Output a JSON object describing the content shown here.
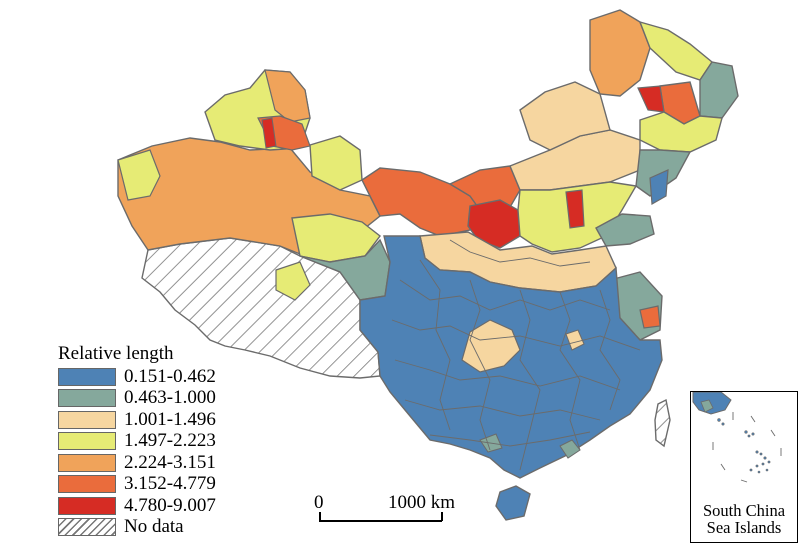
{
  "map": {
    "colors": {
      "class1": "#4e82b5",
      "class2": "#85a89c",
      "class3": "#f6d6a0",
      "class4": "#e6eb75",
      "class5": "#f0a35a",
      "class6": "#ea6c3c",
      "class7": "#d62c24",
      "boundary": "#6b6b6b",
      "hatch": "#777777"
    }
  },
  "legend": {
    "title": "Relative length",
    "items": [
      {
        "label": "0.151-0.462",
        "color": "#4e82b5"
      },
      {
        "label": "0.463-1.000",
        "color": "#85a89c"
      },
      {
        "label": "1.001-1.496",
        "color": "#f6d6a0"
      },
      {
        "label": "1.497-2.223",
        "color": "#e6eb75"
      },
      {
        "label": "2.224-3.151",
        "color": "#f0a35a"
      },
      {
        "label": "3.152-4.779",
        "color": "#ea6c3c"
      },
      {
        "label": "4.780-9.007",
        "color": "#d62c24"
      }
    ],
    "no_data_label": "No data"
  },
  "scale_bar": {
    "start_label": "0",
    "end_label": "1000 km"
  },
  "inset": {
    "label_line1": "South China",
    "label_line2": "Sea Islands"
  }
}
